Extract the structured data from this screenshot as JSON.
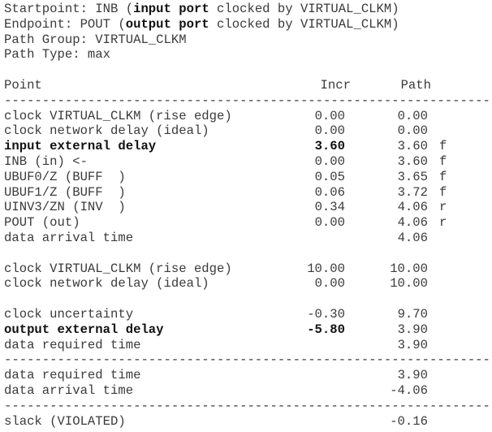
{
  "header": [
    {
      "parts": [
        {
          "t": "Startpoint: INB ("
        },
        {
          "t": "input port",
          "b": true
        },
        {
          "t": " clocked by VIRTUAL_CLKM)"
        }
      ]
    },
    {
      "parts": [
        {
          "t": "Endpoint: POUT ("
        },
        {
          "t": "output port",
          "b": true
        },
        {
          "t": " clocked by VIRTUAL_CLKM)"
        }
      ]
    },
    {
      "parts": [
        {
          "t": "Path Group: VIRTUAL_CLKM"
        }
      ]
    },
    {
      "parts": [
        {
          "t": "Path Type: max"
        }
      ]
    }
  ],
  "columns": {
    "point": "Point",
    "incr": "Incr",
    "path": "Path"
  },
  "dashes": "----------------------------------------------------------------",
  "rows": [
    {
      "type": "dash"
    },
    {
      "point": "clock VIRTUAL_CLKM (rise edge)",
      "incr": "0.00",
      "path": "0.00",
      "sfx": ""
    },
    {
      "point": "clock network delay (ideal)",
      "incr": "0.00",
      "path": "0.00",
      "sfx": ""
    },
    {
      "point": "input external delay",
      "incr": "3.60",
      "path": "3.60",
      "sfx": "f",
      "bold": true
    },
    {
      "point": "INB (in) <-",
      "incr": "0.00",
      "path": "3.60",
      "sfx": "f"
    },
    {
      "point": "UBUF0/Z (BUFF  )",
      "incr": "0.05",
      "path": "3.65",
      "sfx": "f"
    },
    {
      "point": "UBUF1/Z (BUFF  )",
      "incr": "0.06",
      "path": "3.72",
      "sfx": "f"
    },
    {
      "point": "UINV3/ZN (INV  )",
      "incr": "0.34",
      "path": "4.06",
      "sfx": "r"
    },
    {
      "point": "POUT (out)",
      "incr": "0.00",
      "path": "4.06",
      "sfx": "r"
    },
    {
      "point": "data arrival time",
      "incr": "",
      "path": "4.06",
      "sfx": ""
    },
    {
      "type": "blank"
    },
    {
      "point": "clock VIRTUAL_CLKM (rise edge)",
      "incr": "10.00",
      "path": "10.00",
      "sfx": ""
    },
    {
      "point": "clock network delay (ideal)",
      "incr": "0.00",
      "path": "10.00",
      "sfx": ""
    },
    {
      "type": "blank"
    },
    {
      "point": "clock uncertainty",
      "incr": "-0.30",
      "path": "9.70",
      "sfx": ""
    },
    {
      "point": "output external delay",
      "incr": "-5.80",
      "path": "3.90",
      "sfx": "",
      "bold": true
    },
    {
      "point": "data required time",
      "incr": "",
      "path": "3.90",
      "sfx": ""
    },
    {
      "type": "dash"
    },
    {
      "point": "data required time",
      "incr": "",
      "path": "3.90",
      "sfx": ""
    },
    {
      "point": "data arrival time",
      "incr": "",
      "path": "-4.06",
      "sfx": ""
    },
    {
      "type": "dash"
    },
    {
      "point": "slack (VIOLATED)",
      "incr": "",
      "path": "-0.16",
      "sfx": ""
    }
  ]
}
